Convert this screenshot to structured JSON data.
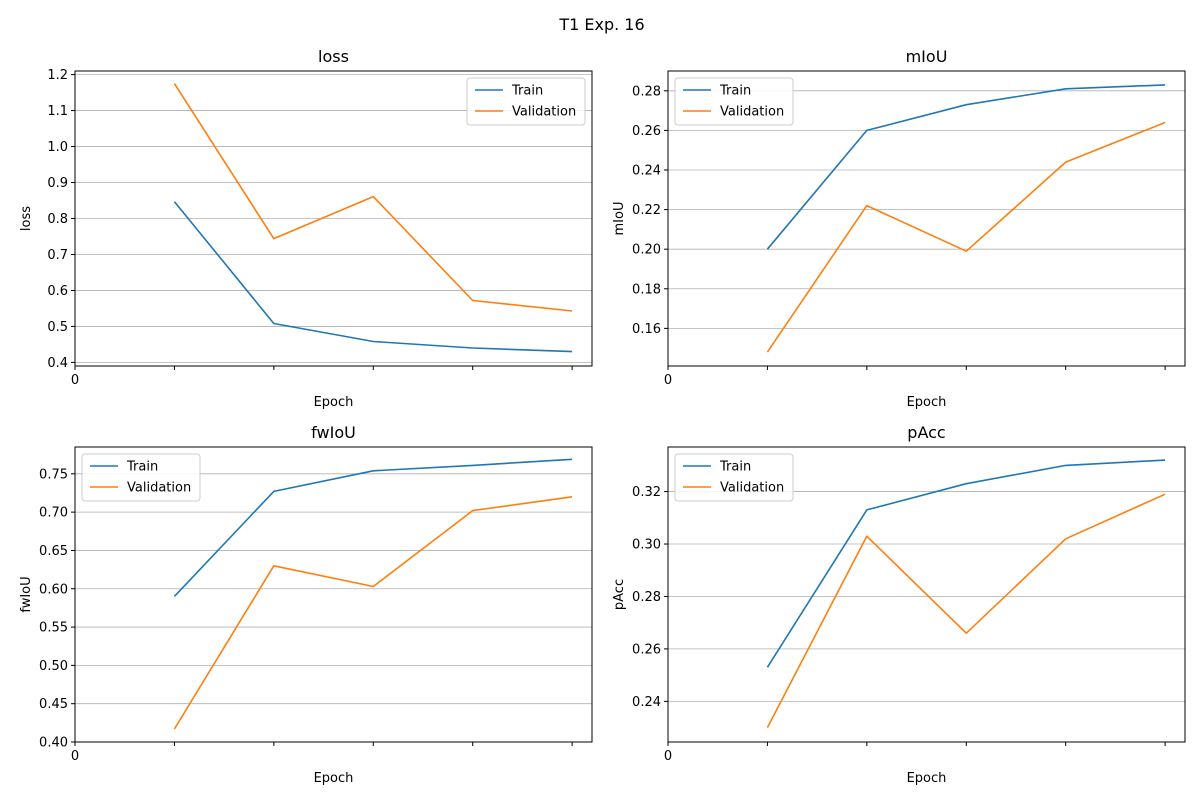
{
  "figure": {
    "title": "T1 Exp. 16",
    "colors": {
      "train": "#1f77b4",
      "validation": "#ff7f0e",
      "grid": "#b0b0b0"
    }
  },
  "chart_data": [
    {
      "type": "line",
      "title": "loss",
      "xlabel": "Epoch",
      "ylabel": "loss",
      "x": [
        1,
        2,
        3,
        4,
        5
      ],
      "xlim": [
        0,
        5.2
      ],
      "xticks": [
        0,
        1,
        2,
        3,
        4,
        5
      ],
      "xticklabels": [
        "0",
        "",
        "",
        "",
        "",
        ""
      ],
      "ylim": [
        0.39,
        1.21
      ],
      "yticks": [
        0.4,
        0.5,
        0.6,
        0.7,
        0.8,
        0.9,
        1.0,
        1.1,
        1.2
      ],
      "ytick_labels": [
        "0.4",
        "0.5",
        "0.6",
        "0.7",
        "0.8",
        "0.9",
        "1.0",
        "1.1",
        "1.2"
      ],
      "grid": "y",
      "legend": "top-right",
      "series": [
        {
          "name": "Train",
          "values": [
            0.847,
            0.508,
            0.458,
            0.44,
            0.43
          ]
        },
        {
          "name": "Validation",
          "values": [
            1.175,
            0.744,
            0.861,
            0.572,
            0.543
          ]
        }
      ]
    },
    {
      "type": "line",
      "title": "mIoU",
      "xlabel": "Epoch",
      "ylabel": "mIoU",
      "x": [
        1,
        2,
        3,
        4,
        5
      ],
      "xlim": [
        0,
        5.2
      ],
      "xticks": [
        0,
        1,
        2,
        3,
        4,
        5
      ],
      "xticklabels": [
        "0",
        "",
        "",
        "",
        "",
        ""
      ],
      "ylim": [
        0.141,
        0.29
      ],
      "yticks": [
        0.16,
        0.18,
        0.2,
        0.22,
        0.24,
        0.26,
        0.28
      ],
      "ytick_labels": [
        "0.16",
        "0.18",
        "0.20",
        "0.22",
        "0.24",
        "0.26",
        "0.28"
      ],
      "grid": "y",
      "legend": "top-left",
      "series": [
        {
          "name": "Train",
          "values": [
            0.2,
            0.26,
            0.273,
            0.281,
            0.283
          ]
        },
        {
          "name": "Validation",
          "values": [
            0.148,
            0.222,
            0.199,
            0.244,
            0.264
          ]
        }
      ]
    },
    {
      "type": "line",
      "title": "fwIoU",
      "xlabel": "Epoch",
      "ylabel": "fwIoU",
      "x": [
        1,
        2,
        3,
        4,
        5
      ],
      "xlim": [
        0,
        5.2
      ],
      "xticks": [
        0,
        1,
        2,
        3,
        4,
        5
      ],
      "xticklabels": [
        "0",
        "",
        "",
        "",
        "",
        ""
      ],
      "ylim": [
        0.4,
        0.785
      ],
      "yticks": [
        0.4,
        0.45,
        0.5,
        0.55,
        0.6,
        0.65,
        0.7,
        0.75
      ],
      "ytick_labels": [
        "0.40",
        "0.45",
        "0.50",
        "0.55",
        "0.60",
        "0.65",
        "0.70",
        "0.75"
      ],
      "grid": "y",
      "legend": "top-left",
      "series": [
        {
          "name": "Train",
          "values": [
            0.59,
            0.727,
            0.754,
            0.761,
            0.769
          ]
        },
        {
          "name": "Validation",
          "values": [
            0.417,
            0.63,
            0.603,
            0.702,
            0.72
          ]
        }
      ]
    },
    {
      "type": "line",
      "title": "pAcc",
      "xlabel": "Epoch",
      "ylabel": "pAcc",
      "x": [
        1,
        2,
        3,
        4,
        5
      ],
      "xlim": [
        0,
        5.2
      ],
      "xticks": [
        0,
        1,
        2,
        3,
        4,
        5
      ],
      "xticklabels": [
        "0",
        "",
        "",
        "",
        "",
        ""
      ],
      "ylim": [
        0.2245,
        0.337
      ],
      "yticks": [
        0.24,
        0.26,
        0.28,
        0.3,
        0.32
      ],
      "ytick_labels": [
        "0.24",
        "0.26",
        "0.28",
        "0.30",
        "0.32"
      ],
      "grid": "y",
      "legend": "top-left",
      "series": [
        {
          "name": "Train",
          "values": [
            0.253,
            0.313,
            0.323,
            0.33,
            0.332
          ]
        },
        {
          "name": "Validation",
          "values": [
            0.23,
            0.303,
            0.266,
            0.302,
            0.319
          ]
        }
      ]
    }
  ]
}
